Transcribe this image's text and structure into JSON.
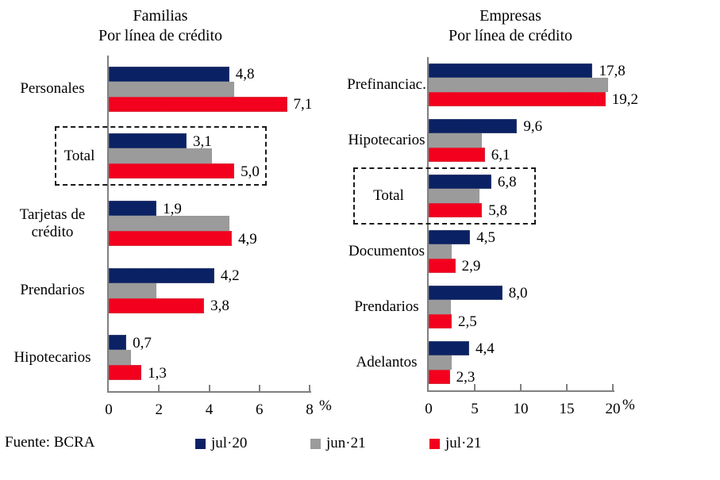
{
  "source_note": "Fuente: BCRA",
  "legend": {
    "items": [
      {
        "label": "jul·20",
        "color": "#0a2164"
      },
      {
        "label": "jun·21",
        "color": "#9b9b9b"
      },
      {
        "label": "jul·21",
        "color": "#f2001e"
      }
    ]
  },
  "colors": {
    "series_jul20": "#0a2164",
    "series_jun21": "#9b9b9b",
    "series_jul21": "#f2001e",
    "axis": "#808080",
    "highlight_box_border": "#1a1a1a",
    "text": "#000000"
  },
  "chart_data": [
    {
      "type": "bar",
      "orientation": "horizontal",
      "title": "Familias",
      "subtitle": "Por línea de crédito",
      "xlabel": "%",
      "xlim": [
        0,
        8
      ],
      "xticks": [
        0,
        2,
        4,
        6,
        8
      ],
      "xtick_labels": [
        "0",
        "2",
        "4",
        "6",
        "8"
      ],
      "grid": false,
      "legend_position": "bottom",
      "categories": [
        "Personales",
        "Total",
        "Tarjetas de crédito",
        "Prendarios",
        "Hipotecarios"
      ],
      "highlight_category": "Total",
      "series": [
        {
          "name": "jul·20",
          "color": "#0a2164",
          "labeled": true,
          "values": [
            4.8,
            3.1,
            1.9,
            4.2,
            0.7
          ],
          "labels": [
            "4,8",
            "3,1",
            "1,9",
            "4,2",
            "0,7"
          ]
        },
        {
          "name": "jun·21",
          "color": "#9b9b9b",
          "labeled": false,
          "values": [
            5.0,
            4.1,
            4.8,
            1.9,
            0.9
          ],
          "labels": null
        },
        {
          "name": "jul·21",
          "color": "#f2001e",
          "labeled": true,
          "values": [
            7.1,
            5.0,
            4.9,
            3.8,
            1.3
          ],
          "labels": [
            "7,1",
            "5,0",
            "4,9",
            "3,8",
            "1,3"
          ]
        }
      ]
    },
    {
      "type": "bar",
      "orientation": "horizontal",
      "title": "Empresas",
      "subtitle": "Por línea de crédito",
      "xlabel": "%",
      "xlim": [
        0,
        20
      ],
      "xticks": [
        0,
        5,
        10,
        15,
        20
      ],
      "xtick_labels": [
        "0",
        "5",
        "10",
        "15",
        "20"
      ],
      "grid": false,
      "legend_position": "bottom",
      "categories": [
        "Prefinanciac.",
        "Hipotecarios",
        "Total",
        "Documentos",
        "Prendarios",
        "Adelantos"
      ],
      "highlight_category": "Total",
      "series": [
        {
          "name": "jul·20",
          "color": "#0a2164",
          "labeled": true,
          "values": [
            17.8,
            9.6,
            6.8,
            4.5,
            8.0,
            4.4
          ],
          "labels": [
            "17,8",
            "9,6",
            "6,8",
            "4,5",
            "8,0",
            "4,4"
          ]
        },
        {
          "name": "jun·21",
          "color": "#9b9b9b",
          "labeled": false,
          "values": [
            19.5,
            5.8,
            5.5,
            2.5,
            2.4,
            2.5
          ],
          "labels": null
        },
        {
          "name": "jul·21",
          "color": "#f2001e",
          "labeled": true,
          "values": [
            19.2,
            6.1,
            5.8,
            2.9,
            2.5,
            2.3
          ],
          "labels": [
            "19,2",
            "6,1",
            "5,8",
            "2,9",
            "2,5",
            "2,3"
          ]
        }
      ]
    }
  ]
}
